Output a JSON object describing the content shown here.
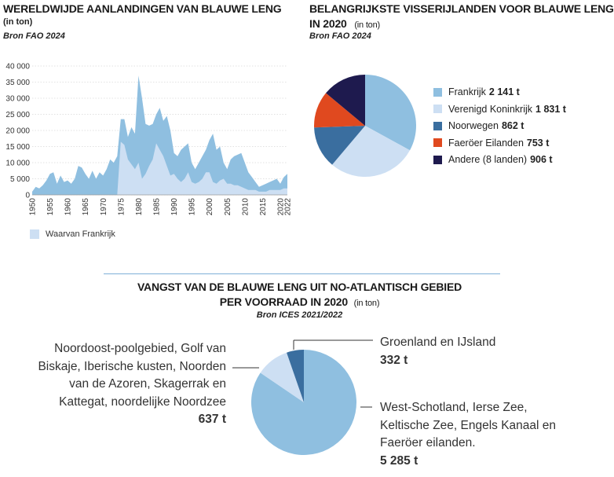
{
  "area_chart": {
    "title": "WERELDWIJDE AANLANDINGEN VAN BLAUWE LENG",
    "unit": "(in ton)",
    "source": "Bron FAO 2024",
    "legend_label": "Waarvan Frankrijk"
  },
  "pie_countries": {
    "title_line1": "BELANGRIJKSTE VISSERIJLANDEN VOOR BLAUWE LENG",
    "title_line2": "IN 2020",
    "unit": "(in ton)",
    "source": "Bron FAO 2024"
  },
  "pie_stocks": {
    "title_line1": "VANGST VAN DE BLAUWE LENG UIT NO-ATLANTISCH GEBIED",
    "title_line2": "PER VOORRAAD  IN 2020",
    "unit": "(in ton)",
    "source": "Bron ICES 2021/2022",
    "callouts": {
      "north_label_lines": [
        "Noordoost-poolgebied, Golf van",
        "Biskaje, Iberische kusten, Noorden",
        "van de Azoren, Skagerrak en",
        "Kattegat, noordelijke Noordzee"
      ],
      "north_value": "637 t",
      "greenland_label": "Groenland en IJsland",
      "greenland_value": "332 t",
      "west_label_lines": [
        "West-Schotland, Ierse Zee,",
        "Keltische Zee, Engels Kanaal en",
        "Faeröer eilanden."
      ],
      "west_value": "5 285 t"
    }
  },
  "colors": {
    "total": "#8fbfe0",
    "france": "#cddff3",
    "frankrijk": "#8fbfe0",
    "verenigd_koninkrijk": "#cddff3",
    "noorwegen": "#3a6e9f",
    "faeroer": "#e0491f",
    "andere": "#1e1a4e",
    "divider": "#7fb0d8"
  },
  "chart_data": [
    {
      "type": "area",
      "title": "WERELDWIJDE AANLANDINGEN VAN BLAUWE LENG",
      "ylabel": "(in ton)",
      "xlim": [
        1950,
        2022
      ],
      "ylim": [
        0,
        40000
      ],
      "y_ticks": [
        0,
        5000,
        10000,
        15000,
        20000,
        25000,
        30000,
        35000,
        40000
      ],
      "y_tick_labels": [
        "0",
        "5 000",
        "10 000",
        "15 000",
        "20 000",
        "25 000",
        "30 000",
        "35 000",
        "40 000"
      ],
      "x_ticks": [
        1950,
        1955,
        1960,
        1965,
        1970,
        1975,
        1980,
        1985,
        1990,
        1995,
        2000,
        2005,
        2010,
        2015,
        2020,
        2022
      ],
      "legend": "Waarvan Frankrijk",
      "x": [
        1950,
        1951,
        1952,
        1953,
        1954,
        1955,
        1956,
        1957,
        1958,
        1959,
        1960,
        1961,
        1962,
        1963,
        1964,
        1965,
        1966,
        1967,
        1968,
        1969,
        1970,
        1971,
        1972,
        1973,
        1974,
        1975,
        1976,
        1977,
        1978,
        1979,
        1980,
        1981,
        1982,
        1983,
        1984,
        1985,
        1986,
        1987,
        1988,
        1989,
        1990,
        1991,
        1992,
        1993,
        1994,
        1995,
        1996,
        1997,
        1998,
        1999,
        2000,
        2001,
        2002,
        2003,
        2004,
        2005,
        2006,
        2007,
        2008,
        2009,
        2010,
        2011,
        2012,
        2013,
        2014,
        2015,
        2016,
        2017,
        2018,
        2019,
        2020,
        2021,
        2022
      ],
      "series": [
        {
          "name": "",
          "values": [
            1000,
            2500,
            2000,
            3000,
            4500,
            6500,
            7000,
            3500,
            6000,
            4000,
            4500,
            3500,
            5000,
            9000,
            8500,
            6500,
            5000,
            7500,
            5000,
            7000,
            6000,
            8000,
            11000,
            10000,
            12000,
            23500,
            23500,
            18000,
            21000,
            19000,
            37000,
            30000,
            22000,
            21500,
            22000,
            25000,
            27000,
            23000,
            24500,
            20000,
            13000,
            12000,
            14000,
            15000,
            16000,
            10000,
            8000,
            10000,
            12000,
            14000,
            17000,
            19000,
            14000,
            15000,
            10000,
            8000,
            11000,
            12000,
            12500,
            13000,
            10000,
            7000,
            5500,
            4000,
            2500,
            3000,
            3500,
            4000,
            4500,
            5000,
            3500,
            5500,
            6500
          ]
        },
        {
          "name": "Waarvan Frankrijk",
          "values": [
            0,
            0,
            0,
            0,
            0,
            0,
            0,
            0,
            0,
            0,
            0,
            0,
            0,
            0,
            0,
            0,
            0,
            0,
            0,
            0,
            0,
            0,
            0,
            0,
            0,
            16500,
            15500,
            11000,
            9500,
            8000,
            10000,
            5000,
            6500,
            9000,
            11000,
            16000,
            14000,
            12000,
            9000,
            6000,
            6500,
            5000,
            4000,
            5000,
            7000,
            4000,
            3500,
            4000,
            5000,
            7000,
            7000,
            4000,
            3500,
            4500,
            5000,
            3500,
            3500,
            3000,
            3000,
            2500,
            2000,
            1500,
            1500,
            1500,
            1000,
            1000,
            1000,
            1500,
            1500,
            1500,
            1500,
            2000,
            2000
          ]
        }
      ]
    },
    {
      "type": "pie",
      "title": "BELANGRIJKSTE VISSERIJLANDEN VOOR BLAUWE LENG IN 2020",
      "unit": "(in ton)",
      "labels": [
        "Frankrijk",
        "Verenigd Koninkrijk",
        "Noorwegen",
        "Faeröer Eilanden",
        "Andere (8 landen)"
      ],
      "value_labels": [
        "2 141 t",
        "1 831 t",
        "862 t",
        "753 t",
        "906 t"
      ],
      "values": [
        2141,
        1831,
        862,
        753,
        906
      ]
    },
    {
      "type": "pie",
      "title": "VANGST VAN DE BLAUWE LENG UIT NO-ATLANTISCH GEBIED PER VOORRAAD IN 2020",
      "unit": "(in ton)",
      "labels": [
        "West-Schotland, Ierse Zee, Keltische Zee, Engels Kanaal en Faeröer eilanden.",
        "Noordoost-poolgebied, Golf van Biskaje, Iberische kusten, Noorden van de Azoren, Skagerrak en Kattegat, noordelijke Noordzee",
        "Groenland en IJsland"
      ],
      "value_labels": [
        "5 285 t",
        "637 t",
        "332 t"
      ],
      "values": [
        5285,
        637,
        332
      ]
    }
  ]
}
